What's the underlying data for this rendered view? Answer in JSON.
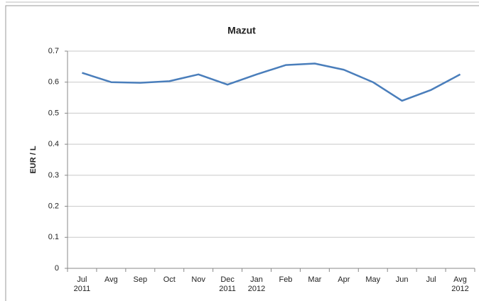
{
  "chart_data": {
    "type": "line",
    "title": "Mazut",
    "y_label": "EUR / L",
    "categories": [
      "Jul\n2011",
      "Avg",
      "Sep",
      "Oct",
      "Nov",
      "Dec\n2011",
      "Jan\n2012",
      "Feb",
      "Mar",
      "Apr",
      "May",
      "Jun",
      "Jul",
      "Avg\n2012"
    ],
    "series": [
      {
        "name": "Mazut",
        "color": "#4a7ebb",
        "values": [
          0.63,
          0.6,
          0.598,
          0.603,
          0.625,
          0.592,
          0.625,
          0.655,
          0.66,
          0.64,
          0.6,
          0.54,
          0.575,
          0.625
        ]
      }
    ],
    "ylim": [
      0,
      0.7
    ],
    "yticks": [
      0,
      0.1,
      0.2,
      0.3,
      0.4,
      0.5,
      0.6,
      0.7
    ],
    "grid": true
  }
}
